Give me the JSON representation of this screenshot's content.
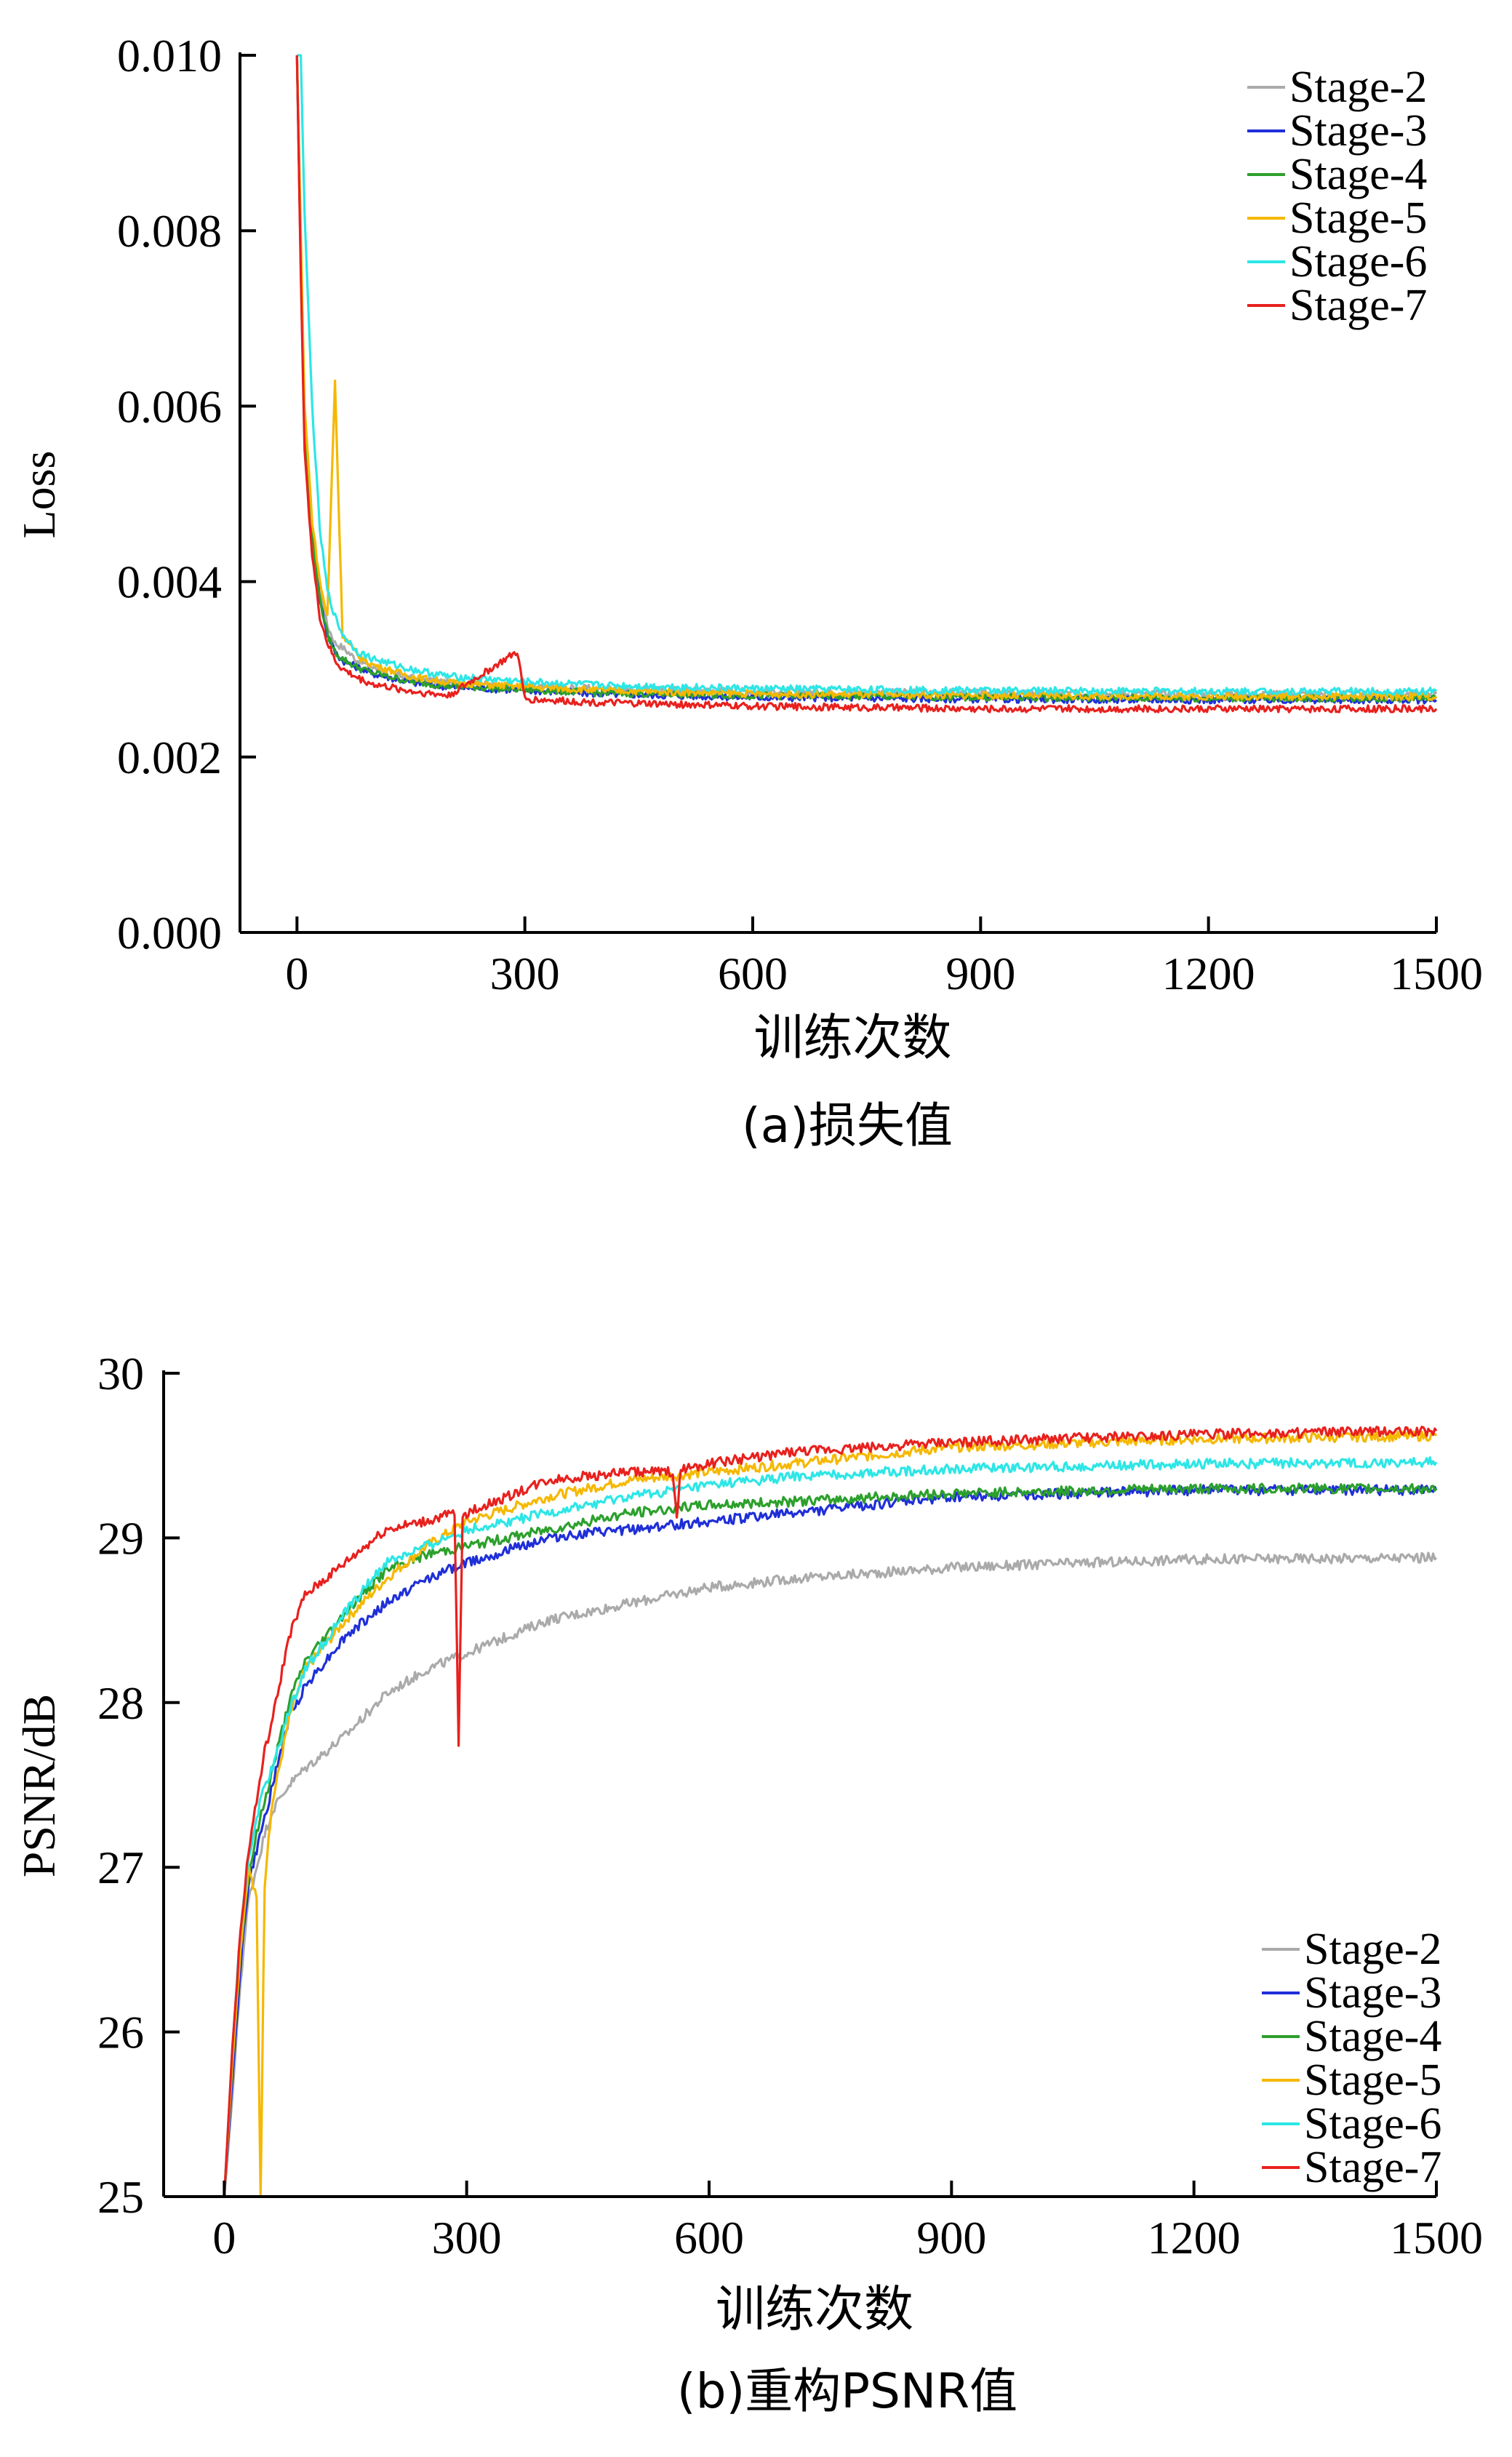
{
  "chart_data": [
    {
      "type": "line",
      "caption": "(a)损失值",
      "xlabel": "训练次数",
      "ylabel": "Loss",
      "xlim": [
        -75,
        1500
      ],
      "ylim": [
        0.0,
        0.01
      ],
      "xticks": [
        0,
        300,
        600,
        900,
        1200,
        1500
      ],
      "xtick_labels": [
        "0",
        "300",
        "600",
        "900",
        "1200",
        "1500"
      ],
      "yticks": [
        0.0,
        0.002,
        0.004,
        0.006,
        0.008,
        0.01
      ],
      "ytick_labels": [
        "0.000",
        "0.002",
        "0.004",
        "0.006",
        "0.008",
        "0.010"
      ],
      "grid": false,
      "legend_position": "top-right",
      "series": [
        {
          "name": "Stage-2",
          "color": "#aaaaaa",
          "x": [
            0,
            5,
            10,
            20,
            30,
            40,
            50,
            60,
            80,
            100,
            150,
            200,
            300,
            400,
            600,
            900,
            1200,
            1500
          ],
          "y": [
            0.01,
            0.0078,
            0.0058,
            0.0046,
            0.0039,
            0.0035,
            0.0033,
            0.00325,
            0.0031,
            0.00302,
            0.0029,
            0.00285,
            0.0028,
            0.00278,
            0.00275,
            0.00273,
            0.00272,
            0.00272
          ]
        },
        {
          "name": "Stage-3",
          "color": "#1f2fd8",
          "x": [
            0,
            5,
            10,
            20,
            30,
            40,
            50,
            60,
            80,
            100,
            150,
            200,
            300,
            400,
            600,
            900,
            1200,
            1500
          ],
          "y": [
            0.01,
            0.0076,
            0.0056,
            0.0045,
            0.0038,
            0.0034,
            0.0032,
            0.0031,
            0.00302,
            0.00295,
            0.00285,
            0.0028,
            0.00276,
            0.00272,
            0.00268,
            0.00266,
            0.00265,
            0.00265
          ]
        },
        {
          "name": "Stage-4",
          "color": "#2ca02c",
          "x": [
            0,
            5,
            10,
            20,
            30,
            40,
            50,
            60,
            80,
            100,
            150,
            200,
            300,
            400,
            600,
            900,
            1200,
            1500
          ],
          "y": [
            0.01,
            0.0077,
            0.0057,
            0.0045,
            0.0038,
            0.0034,
            0.0032,
            0.00312,
            0.00302,
            0.00296,
            0.00286,
            0.00281,
            0.00277,
            0.00273,
            0.0027,
            0.00268,
            0.00267,
            0.00267
          ]
        },
        {
          "name": "Stage-5",
          "color": "#f5b800",
          "x": [
            0,
            5,
            10,
            20,
            30,
            40,
            50,
            60,
            80,
            100,
            150,
            200,
            300,
            400,
            600,
            900,
            1200,
            1500
          ],
          "y": [
            0.01,
            0.008,
            0.006,
            0.0047,
            0.004,
            0.0036,
            0.0063,
            0.0034,
            0.00315,
            0.00305,
            0.00292,
            0.00285,
            0.0028,
            0.00276,
            0.00272,
            0.0027,
            0.00269,
            0.00269
          ]
        },
        {
          "name": "Stage-6",
          "color": "#2ee6e6",
          "x": [
            0,
            5,
            10,
            20,
            30,
            40,
            50,
            60,
            80,
            100,
            150,
            200,
            300,
            400,
            600,
            900,
            1200,
            1500
          ],
          "y": [
            0.01,
            0.01,
            0.0082,
            0.006,
            0.0046,
            0.0039,
            0.0036,
            0.0034,
            0.0032,
            0.00312,
            0.003,
            0.00292,
            0.00286,
            0.00282,
            0.00278,
            0.00276,
            0.00275,
            0.00275
          ]
        },
        {
          "name": "Stage-7",
          "color": "#e8211e",
          "x": [
            0,
            5,
            10,
            20,
            30,
            40,
            50,
            60,
            80,
            100,
            150,
            200,
            290,
            300,
            400,
            600,
            900,
            1200,
            1500
          ],
          "y": [
            0.01,
            0.0075,
            0.0055,
            0.0043,
            0.0036,
            0.0033,
            0.0031,
            0.003,
            0.0029,
            0.00283,
            0.00275,
            0.0027,
            0.0032,
            0.00266,
            0.00262,
            0.00258,
            0.00255,
            0.00255,
            0.00255
          ]
        }
      ]
    },
    {
      "type": "line",
      "caption": "(b)重构PSNR值",
      "xlabel": "训练次数",
      "ylabel": "PSNR/dB",
      "xlim": [
        -75,
        1500
      ],
      "ylim": [
        25,
        30
      ],
      "xticks": [
        0,
        300,
        600,
        900,
        1200,
        1500
      ],
      "xtick_labels": [
        "0",
        "300",
        "600",
        "900",
        "1200",
        "1500"
      ],
      "yticks": [
        25,
        26,
        27,
        28,
        29,
        30
      ],
      "ytick_labels": [
        "25",
        "26",
        "27",
        "28",
        "29",
        "30"
      ],
      "grid": false,
      "legend_position": "bottom-right",
      "series": [
        {
          "name": "Stage-2",
          "color": "#aaaaaa",
          "x": [
            0,
            10,
            20,
            30,
            40,
            50,
            60,
            80,
            100,
            150,
            200,
            250,
            300,
            400,
            500,
            600,
            700,
            900,
            1200,
            1500
          ],
          "y": [
            25.0,
            25.6,
            26.3,
            26.8,
            27.0,
            27.2,
            27.35,
            27.5,
            27.6,
            27.8,
            28.05,
            28.2,
            28.3,
            28.5,
            28.6,
            28.7,
            28.75,
            28.82,
            28.87,
            28.88
          ]
        },
        {
          "name": "Stage-3",
          "color": "#1f2fd8",
          "x": [
            0,
            10,
            20,
            30,
            40,
            50,
            60,
            80,
            100,
            150,
            200,
            250,
            300,
            400,
            500,
            600,
            700,
            900,
            1200,
            1500
          ],
          "y": [
            25.0,
            25.7,
            26.4,
            26.9,
            27.1,
            27.3,
            27.5,
            27.9,
            28.1,
            28.4,
            28.6,
            28.75,
            28.85,
            29.0,
            29.05,
            29.1,
            29.15,
            29.25,
            29.29,
            29.29
          ]
        },
        {
          "name": "Stage-4",
          "color": "#2ca02c",
          "x": [
            0,
            10,
            20,
            30,
            40,
            50,
            60,
            80,
            100,
            150,
            200,
            250,
            300,
            400,
            500,
            600,
            700,
            900,
            1200,
            1500
          ],
          "y": [
            25.0,
            25.8,
            26.5,
            26.95,
            27.2,
            27.4,
            27.6,
            28.0,
            28.25,
            28.55,
            28.8,
            28.9,
            28.95,
            29.05,
            29.15,
            29.2,
            29.22,
            29.27,
            29.3,
            29.3
          ]
        },
        {
          "name": "Stage-5",
          "color": "#f5b800",
          "x": [
            0,
            10,
            20,
            30,
            40,
            45,
            50,
            55,
            60,
            80,
            100,
            150,
            200,
            250,
            300,
            400,
            500,
            600,
            700,
            900,
            1200,
            1500
          ],
          "y": [
            25.0,
            25.8,
            26.5,
            27.0,
            26.8,
            25.0,
            26.9,
            27.2,
            27.4,
            27.9,
            28.2,
            28.5,
            28.75,
            28.95,
            29.1,
            29.25,
            29.35,
            29.4,
            29.45,
            29.55,
            29.6,
            29.62
          ]
        },
        {
          "name": "Stage-6",
          "color": "#2ee6e6",
          "x": [
            0,
            10,
            20,
            30,
            40,
            50,
            60,
            80,
            100,
            150,
            200,
            250,
            300,
            400,
            500,
            600,
            700,
            900,
            1200,
            1500
          ],
          "y": [
            25.0,
            25.9,
            26.6,
            27.05,
            27.3,
            27.5,
            27.6,
            27.95,
            28.2,
            28.55,
            28.85,
            28.95,
            29.05,
            29.15,
            29.25,
            29.32,
            29.37,
            29.42,
            29.45,
            29.46
          ]
        },
        {
          "name": "Stage-7",
          "color": "#e8211e",
          "x": [
            0,
            10,
            20,
            30,
            40,
            50,
            60,
            80,
            100,
            150,
            200,
            250,
            285,
            290,
            295,
            300,
            350,
            400,
            500,
            555,
            560,
            565,
            600,
            700,
            900,
            1200,
            1500
          ],
          "y": [
            25.0,
            25.9,
            26.6,
            27.1,
            27.4,
            27.7,
            27.9,
            28.4,
            28.65,
            28.85,
            29.05,
            29.1,
            29.15,
            27.75,
            29.15,
            29.15,
            29.25,
            29.35,
            29.4,
            29.4,
            29.1,
            29.42,
            29.45,
            29.52,
            29.58,
            29.63,
            29.65
          ]
        }
      ]
    }
  ]
}
